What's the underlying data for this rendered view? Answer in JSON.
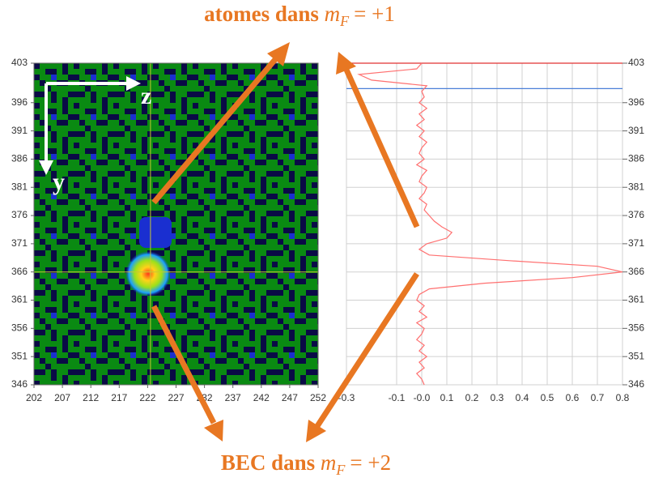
{
  "chart_data": [
    {
      "type": "heatmap",
      "xlim": [
        202,
        252
      ],
      "ylim": [
        346,
        403
      ],
      "xticks": [
        202,
        207,
        212,
        217,
        222,
        227,
        232,
        237,
        242,
        247,
        252
      ],
      "yticks": [
        403,
        396,
        391,
        386,
        381,
        376,
        371,
        366,
        361,
        356,
        351,
        346
      ],
      "crosshair": {
        "x": 222.5,
        "y": 366,
        "color": "#c8c832"
      },
      "axis_labels": {
        "x": "z",
        "y": "y"
      }
    },
    {
      "type": "line",
      "xlim": [
        -0.3,
        0.8
      ],
      "ylim": [
        346,
        403
      ],
      "xticks": [
        -0.3,
        -0.1,
        {
          "value": 0,
          "label": "-0.0"
        },
        0.1,
        0.2,
        0.3,
        0.4,
        0.5,
        0.6,
        0.7,
        0.8
      ],
      "yticks": [
        403,
        396,
        391,
        386,
        381,
        376,
        371,
        366,
        361,
        356,
        351,
        346
      ],
      "grid": true,
      "hlines": [
        {
          "value": 403,
          "color": "#e03030"
        },
        {
          "value": 398.5,
          "color": "#4a7fd8"
        }
      ],
      "y": [
        403,
        402,
        401,
        400,
        399,
        398,
        397,
        396,
        395,
        394,
        393,
        392,
        391,
        390,
        389,
        388,
        387,
        386,
        385,
        384,
        383,
        382,
        381,
        380,
        379,
        378,
        377,
        376,
        375,
        374,
        373,
        372,
        371,
        370,
        369,
        368,
        367,
        366,
        365,
        364,
        363,
        362,
        361,
        360,
        359,
        358,
        357,
        356,
        355,
        354,
        353,
        352,
        351,
        350,
        349,
        348,
        347,
        346
      ],
      "series": [
        {
          "color": "#ff7070",
          "values": [
            0,
            -0.02,
            -0.25,
            -0.2,
            0.02,
            0,
            0.01,
            -0.01,
            0.02,
            -0.01,
            0.01,
            -0.02,
            0.01,
            -0.01,
            0.02,
            0,
            -0.01,
            0.01,
            -0.02,
            0.02,
            0,
            -0.01,
            0.02,
            0.01,
            -0.01,
            0.02,
            0.01,
            0.03,
            0.05,
            0.08,
            0.12,
            0.1,
            0.02,
            -0.01,
            0.03,
            0.35,
            0.7,
            0.8,
            0.6,
            0.25,
            0.03,
            -0.01,
            -0.02,
            0.01,
            -0.01,
            0.02,
            -0.02,
            0.01,
            0,
            -0.02,
            0.01,
            -0.01,
            0.02,
            -0.01,
            0.01,
            -0.02,
            0,
            0.01
          ]
        }
      ]
    }
  ],
  "annotations": {
    "top": {
      "text": "atomes dans",
      "math": "m",
      "sub": "F",
      "rel": "= +1"
    },
    "bottom": {
      "text": "BEC dans",
      "math": "m",
      "sub": "F",
      "rel": "= +2"
    }
  }
}
